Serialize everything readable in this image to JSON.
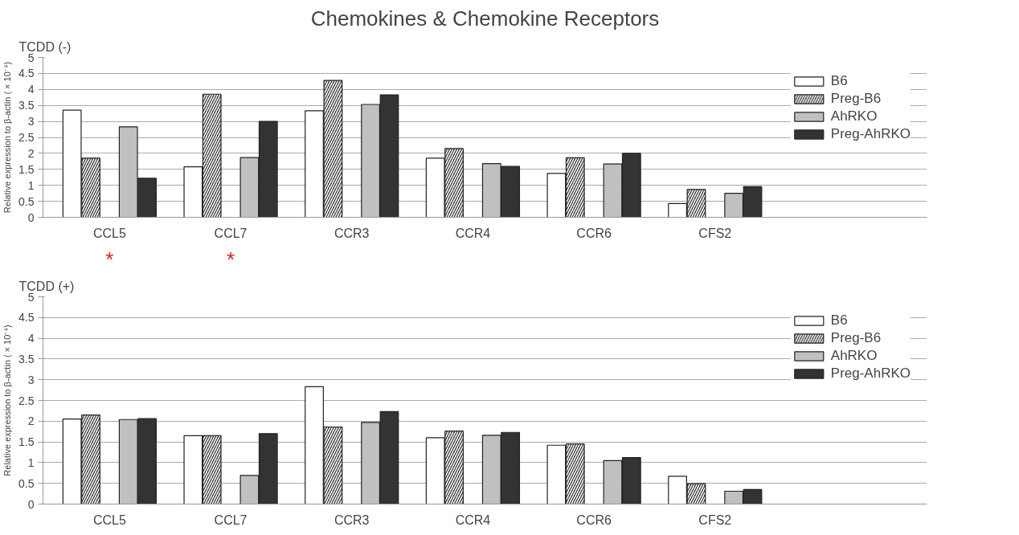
{
  "chart_data": [
    {
      "type": "bar",
      "title": "Chemokines & Chemokine Receptors",
      "subtitle": "TCDD (-)",
      "ylabel": "Relative expression to β-actin ( × 10⁻⁴)",
      "categories": [
        "CCL5",
        "CCL7",
        "CCR3",
        "CCR4",
        "CCR6",
        "CFS2"
      ],
      "series": [
        {
          "name": "B6",
          "color": "#ffffff",
          "values": [
            3.35,
            1.58,
            3.33,
            1.85,
            1.37,
            0.43
          ]
        },
        {
          "name": "Preg-B6",
          "color": "#333333",
          "values": [
            1.85,
            3.85,
            4.28,
            2.15,
            1.86,
            0.87
          ]
        },
        {
          "name": "AhRKO",
          "color": "#c0c0c0",
          "values": [
            2.83,
            1.87,
            3.53,
            1.68,
            1.67,
            0.75
          ]
        },
        {
          "name": "Preg-AhRKO",
          "color": "#333333",
          "values": [
            1.22,
            3.0,
            3.83,
            1.59,
            2.0,
            0.96
          ]
        }
      ],
      "ylim": [
        0,
        5
      ],
      "yticks": [
        0,
        0.5,
        1,
        1.5,
        2,
        2.5,
        3,
        3.5,
        4,
        4.5,
        5
      ],
      "grid": "y",
      "legend": "top right",
      "annotations": [
        "*",
        "*"
      ]
    },
    {
      "type": "bar",
      "subtitle": "TCDD (+)",
      "ylabel": "Relative expression to β-actin ( × 10⁻⁴)",
      "categories": [
        "CCL5",
        "CCL7",
        "CCR3",
        "CCR4",
        "CCR6",
        "CFS2"
      ],
      "series": [
        {
          "name": "B6",
          "color": "#ffffff",
          "values": [
            2.05,
            1.65,
            2.83,
            1.6,
            1.42,
            0.67
          ]
        },
        {
          "name": "Preg-B6",
          "color": "#333333",
          "values": [
            2.15,
            1.65,
            1.86,
            1.76,
            1.45,
            0.49
          ]
        },
        {
          "name": "AhRKO",
          "color": "#c0c0c0",
          "values": [
            2.04,
            0.69,
            1.97,
            1.66,
            1.05,
            0.31
          ]
        },
        {
          "name": "Preg-AhRKO",
          "color": "#333333",
          "values": [
            2.06,
            1.7,
            2.23,
            1.73,
            1.12,
            0.35
          ]
        }
      ],
      "ylim": [
        0,
        5
      ],
      "yticks": [
        0,
        0.5,
        1,
        1.5,
        2,
        2.5,
        3,
        3.5,
        4,
        4.5,
        5
      ],
      "grid": "y",
      "legend": "top right"
    }
  ]
}
